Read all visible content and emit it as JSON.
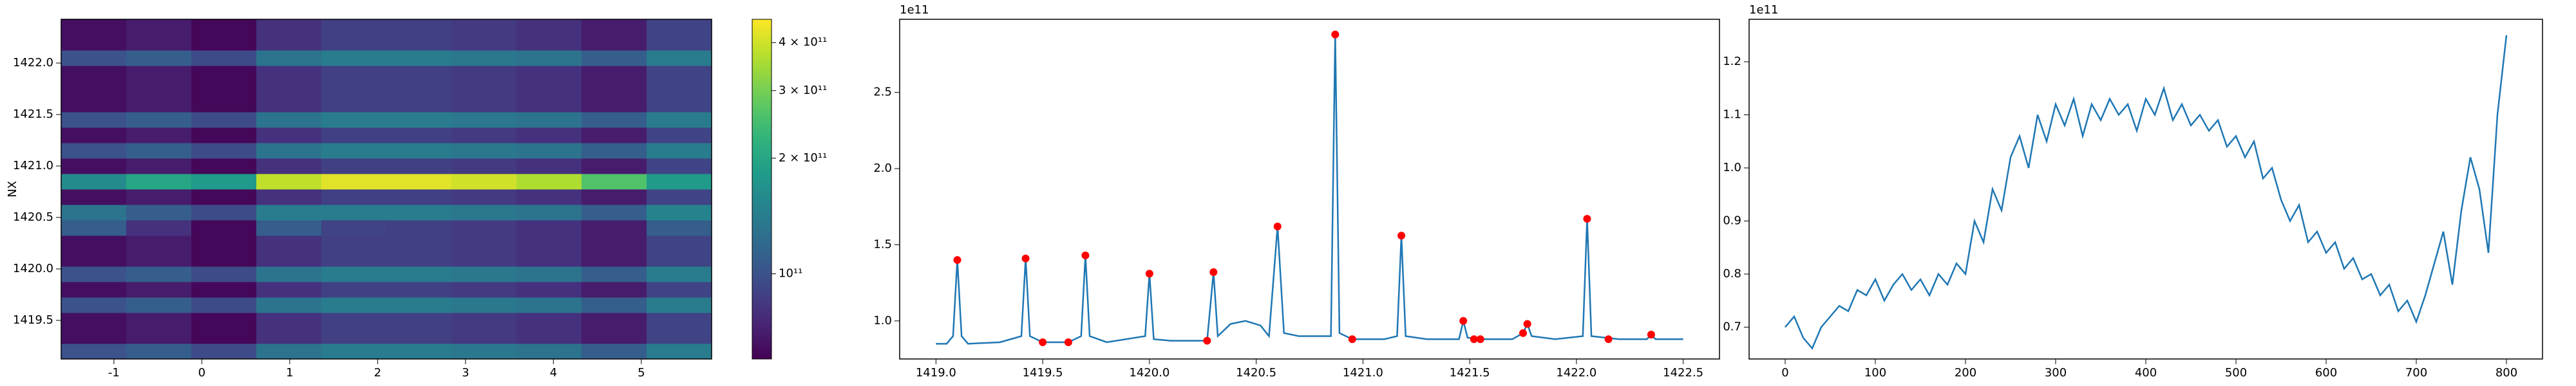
{
  "chart_data": [
    {
      "type": "heatmap",
      "ylabel": "NX",
      "colormap": "viridis",
      "cscale": "log",
      "xlim": [
        -1.6,
        5.8
      ],
      "ylim": [
        1419.125,
        1422.425
      ],
      "xticks": [
        -1,
        0,
        1,
        2,
        3,
        4,
        5
      ],
      "yticks": [
        1419.5,
        {
          "value": 1420,
          "label": "1420.0"
        },
        1420.5,
        {
          "value": 1421,
          "label": "1421.0"
        },
        1421.5,
        {
          "value": 1422,
          "label": "1422.0"
        }
      ],
      "clim": [
        60000000000.0,
        460000000000.0
      ],
      "cticks": [
        {
          "value": 100000000000.0,
          "label": "10¹¹"
        },
        {
          "value": 200000000000.0,
          "label": "2 × 10¹¹"
        },
        {
          "value": 300000000000.0,
          "label": "3 × 10¹¹"
        },
        {
          "value": 400000000000.0,
          "label": "4 × 10¹¹"
        }
      ],
      "x": [
        -1.23,
        -0.49,
        0.25,
        0.99,
        1.73,
        2.47,
        3.21,
        3.95,
        4.69,
        5.43
      ],
      "y": [
        1419.2,
        1419.35,
        1419.5,
        1419.65,
        1419.8,
        1419.95,
        1420.1,
        1420.25,
        1420.4,
        1420.55,
        1420.7,
        1420.85,
        1421.0,
        1421.15,
        1421.3,
        1421.45,
        1421.6,
        1421.75,
        1421.9,
        1422.05,
        1422.2,
        1422.35
      ],
      "z": [
        [
          100000000000.0,
          110000000000.0,
          95000000000.0,
          130000000000.0,
          140000000000.0,
          140000000000.0,
          135000000000.0,
          130000000000.0,
          110000000000.0,
          140000000000.0
        ],
        [
          65000000000.0,
          70000000000.0,
          62000000000.0,
          80000000000.0,
          88000000000.0,
          88000000000.0,
          85000000000.0,
          80000000000.0,
          70000000000.0,
          90000000000.0
        ],
        [
          65000000000.0,
          70000000000.0,
          62000000000.0,
          80000000000.0,
          88000000000.0,
          88000000000.0,
          85000000000.0,
          80000000000.0,
          70000000000.0,
          90000000000.0
        ],
        [
          100000000000.0,
          110000000000.0,
          95000000000.0,
          130000000000.0,
          140000000000.0,
          140000000000.0,
          135000000000.0,
          130000000000.0,
          110000000000.0,
          140000000000.0
        ],
        [
          65000000000.0,
          70000000000.0,
          62000000000.0,
          80000000000.0,
          88000000000.0,
          88000000000.0,
          85000000000.0,
          80000000000.0,
          70000000000.0,
          90000000000.0
        ],
        [
          100000000000.0,
          110000000000.0,
          95000000000.0,
          130000000000.0,
          140000000000.0,
          140000000000.0,
          135000000000.0,
          130000000000.0,
          110000000000.0,
          140000000000.0
        ],
        [
          65000000000.0,
          70000000000.0,
          62000000000.0,
          80000000000.0,
          88000000000.0,
          88000000000.0,
          85000000000.0,
          80000000000.0,
          70000000000.0,
          90000000000.0
        ],
        [
          65000000000.0,
          70000000000.0,
          62000000000.0,
          80000000000.0,
          88000000000.0,
          88000000000.0,
          85000000000.0,
          80000000000.0,
          70000000000.0,
          90000000000.0
        ],
        [
          110000000000.0,
          80000000000.0,
          62000000000.0,
          110000000000.0,
          90000000000.0,
          88000000000.0,
          85000000000.0,
          80000000000.0,
          70000000000.0,
          110000000000.0
        ],
        [
          130000000000.0,
          110000000000.0,
          95000000000.0,
          140000000000.0,
          140000000000.0,
          140000000000.0,
          135000000000.0,
          130000000000.0,
          110000000000.0,
          150000000000.0
        ],
        [
          65000000000.0,
          70000000000.0,
          62000000000.0,
          80000000000.0,
          88000000000.0,
          88000000000.0,
          85000000000.0,
          80000000000.0,
          70000000000.0,
          90000000000.0
        ],
        [
          160000000000.0,
          200000000000.0,
          180000000000.0,
          380000000000.0,
          420000000000.0,
          420000000000.0,
          400000000000.0,
          360000000000.0,
          260000000000.0,
          180000000000.0
        ],
        [
          65000000000.0,
          70000000000.0,
          62000000000.0,
          80000000000.0,
          88000000000.0,
          88000000000.0,
          85000000000.0,
          80000000000.0,
          70000000000.0,
          90000000000.0
        ],
        [
          100000000000.0,
          110000000000.0,
          95000000000.0,
          130000000000.0,
          140000000000.0,
          140000000000.0,
          135000000000.0,
          130000000000.0,
          110000000000.0,
          140000000000.0
        ],
        [
          65000000000.0,
          70000000000.0,
          62000000000.0,
          80000000000.0,
          88000000000.0,
          88000000000.0,
          85000000000.0,
          80000000000.0,
          70000000000.0,
          90000000000.0
        ],
        [
          100000000000.0,
          110000000000.0,
          95000000000.0,
          130000000000.0,
          140000000000.0,
          140000000000.0,
          135000000000.0,
          130000000000.0,
          110000000000.0,
          140000000000.0
        ],
        [
          65000000000.0,
          70000000000.0,
          62000000000.0,
          80000000000.0,
          88000000000.0,
          88000000000.0,
          85000000000.0,
          80000000000.0,
          70000000000.0,
          90000000000.0
        ],
        [
          65000000000.0,
          70000000000.0,
          62000000000.0,
          80000000000.0,
          88000000000.0,
          88000000000.0,
          85000000000.0,
          80000000000.0,
          70000000000.0,
          90000000000.0
        ],
        [
          65000000000.0,
          70000000000.0,
          62000000000.0,
          80000000000.0,
          88000000000.0,
          88000000000.0,
          85000000000.0,
          80000000000.0,
          70000000000.0,
          90000000000.0
        ],
        [
          100000000000.0,
          110000000000.0,
          95000000000.0,
          130000000000.0,
          140000000000.0,
          140000000000.0,
          135000000000.0,
          130000000000.0,
          110000000000.0,
          140000000000.0
        ],
        [
          65000000000.0,
          70000000000.0,
          62000000000.0,
          80000000000.0,
          88000000000.0,
          88000000000.0,
          85000000000.0,
          80000000000.0,
          70000000000.0,
          90000000000.0
        ],
        [
          65000000000.0,
          70000000000.0,
          62000000000.0,
          80000000000.0,
          88000000000.0,
          88000000000.0,
          85000000000.0,
          80000000000.0,
          70000000000.0,
          90000000000.0
        ]
      ]
    },
    {
      "type": "line",
      "offset_text": "1e11",
      "color": "#1f77b4",
      "xlim": [
        1418.83,
        1422.67
      ],
      "ylim": [
        0.75,
        2.98
      ],
      "xticks": [
        {
          "value": 1419,
          "label": "1419.0"
        },
        1419.5,
        {
          "value": 1420,
          "label": "1420.0"
        },
        1420.5,
        {
          "value": 1421,
          "label": "1421.0"
        },
        1421.5,
        {
          "value": 1422,
          "label": "1422.0"
        },
        1422.5
      ],
      "yticks": [
        {
          "value": 1,
          "label": "1.0"
        },
        1.5,
        {
          "value": 2,
          "label": "2.0"
        },
        2.5
      ],
      "x": [
        1419.0,
        1419.05,
        1419.08,
        1419.1,
        1419.12,
        1419.15,
        1419.3,
        1419.4,
        1419.42,
        1419.44,
        1419.5,
        1419.62,
        1419.68,
        1419.7,
        1419.72,
        1419.8,
        1419.98,
        1420.0,
        1420.02,
        1420.1,
        1420.25,
        1420.27,
        1420.3,
        1420.32,
        1420.38,
        1420.45,
        1420.52,
        1420.56,
        1420.6,
        1420.63,
        1420.7,
        1420.85,
        1420.87,
        1420.89,
        1420.95,
        1421.1,
        1421.16,
        1421.18,
        1421.2,
        1421.3,
        1421.45,
        1421.47,
        1421.49,
        1421.55,
        1421.7,
        1421.75,
        1421.77,
        1421.79,
        1421.9,
        1422.03,
        1422.05,
        1422.07,
        1422.2,
        1422.33,
        1422.35,
        1422.37,
        1422.5
      ],
      "values": [
        0.85,
        0.85,
        0.9,
        1.4,
        0.9,
        0.85,
        0.86,
        0.9,
        1.41,
        0.9,
        0.86,
        0.86,
        0.9,
        1.43,
        0.9,
        0.86,
        0.9,
        1.31,
        0.88,
        0.87,
        0.87,
        0.87,
        1.32,
        0.9,
        0.98,
        1.0,
        0.97,
        0.9,
        1.62,
        0.92,
        0.9,
        0.9,
        2.88,
        0.92,
        0.88,
        0.88,
        0.9,
        1.56,
        0.9,
        0.88,
        0.88,
        1.0,
        0.89,
        0.88,
        0.88,
        0.92,
        0.98,
        0.9,
        0.88,
        0.9,
        1.67,
        0.9,
        0.88,
        0.88,
        0.91,
        0.88,
        0.88
      ],
      "markers": {
        "color": "#ff0000",
        "x": [
          1419.1,
          1419.42,
          1419.5,
          1419.62,
          1419.7,
          1420.0,
          1420.27,
          1420.3,
          1420.6,
          1420.87,
          1420.95,
          1421.18,
          1421.47,
          1421.52,
          1421.55,
          1421.75,
          1421.77,
          1422.05,
          1422.15,
          1422.35
        ],
        "values": [
          1.4,
          1.41,
          0.86,
          0.86,
          1.43,
          1.31,
          0.87,
          1.32,
          1.62,
          2.88,
          0.88,
          1.56,
          1.0,
          0.88,
          0.88,
          0.92,
          0.98,
          1.67,
          0.88,
          0.91
        ]
      }
    },
    {
      "type": "line",
      "offset_text": "1e11",
      "color": "#1f77b4",
      "xlim": [
        -40,
        840
      ],
      "ylim": [
        0.64,
        1.28
      ],
      "xticks": [
        0,
        100,
        200,
        300,
        400,
        500,
        600,
        700,
        800
      ],
      "yticks": [
        0.7,
        0.8,
        0.9,
        {
          "value": 1,
          "label": "1.0"
        },
        1.1,
        1.2
      ],
      "x": [
        0,
        10,
        20,
        30,
        40,
        50,
        60,
        70,
        80,
        90,
        100,
        110,
        120,
        130,
        140,
        150,
        160,
        170,
        180,
        190,
        200,
        210,
        220,
        230,
        240,
        250,
        260,
        270,
        280,
        290,
        300,
        310,
        320,
        330,
        340,
        350,
        360,
        370,
        380,
        390,
        400,
        410,
        420,
        430,
        440,
        450,
        460,
        470,
        480,
        490,
        500,
        510,
        520,
        530,
        540,
        550,
        560,
        570,
        580,
        590,
        600,
        610,
        620,
        630,
        640,
        650,
        660,
        670,
        680,
        690,
        700,
        710,
        720,
        730,
        740,
        750,
        760,
        770,
        780,
        790,
        800
      ],
      "values": [
        0.7,
        0.72,
        0.68,
        0.66,
        0.7,
        0.72,
        0.74,
        0.73,
        0.77,
        0.76,
        0.79,
        0.75,
        0.78,
        0.8,
        0.77,
        0.79,
        0.76,
        0.8,
        0.78,
        0.82,
        0.8,
        0.9,
        0.86,
        0.96,
        0.92,
        1.02,
        1.06,
        1.0,
        1.1,
        1.05,
        1.12,
        1.08,
        1.13,
        1.06,
        1.12,
        1.09,
        1.13,
        1.1,
        1.12,
        1.07,
        1.13,
        1.1,
        1.15,
        1.09,
        1.12,
        1.08,
        1.1,
        1.07,
        1.09,
        1.04,
        1.06,
        1.02,
        1.05,
        0.98,
        1.0,
        0.94,
        0.9,
        0.93,
        0.86,
        0.88,
        0.84,
        0.86,
        0.81,
        0.83,
        0.79,
        0.8,
        0.76,
        0.78,
        0.73,
        0.75,
        0.71,
        0.76,
        0.82,
        0.88,
        0.78,
        0.92,
        1.02,
        0.96,
        0.84,
        1.1,
        1.25
      ]
    }
  ]
}
